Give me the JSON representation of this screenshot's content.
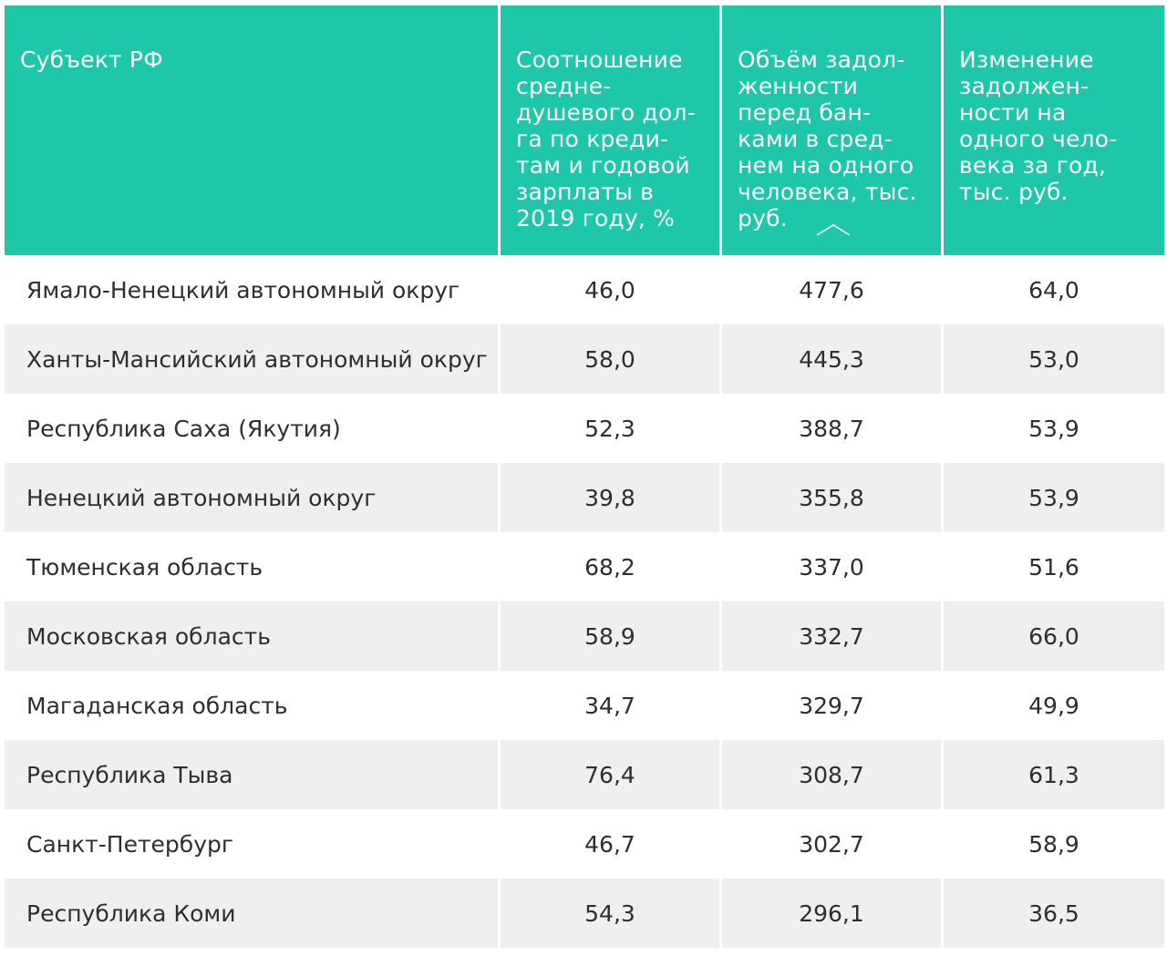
{
  "header": {
    "col1": "Субъект РФ",
    "col2": "Соотношение\nсредне-\nдушевого дол-\nга по креди-\nтам и годовой\nзарплаты в\n2019 году, %",
    "col3": "Объём задол-\nженности\nперед бан-\nками в сред-\nнем на одного\nчеловека, тыс.\nруб.",
    "col4": "Изменение\nзадолжен-\nности на\nодного чело-\nвека за год,\nтыс. руб.",
    "sort_icon": "chevron-up-icon"
  },
  "rows": [
    {
      "region": "Ямало-Ненецкий автономный округ",
      "ratio": "46,0",
      "debt": "477,6",
      "change": "64,0"
    },
    {
      "region": "Ханты-Мансийский автономный округ",
      "ratio": "58,0",
      "debt": "445,3",
      "change": "53,0"
    },
    {
      "region": "Республика Саха (Якутия)",
      "ratio": "52,3",
      "debt": "388,7",
      "change": "53,9"
    },
    {
      "region": "Ненецкий автономный округ",
      "ratio": "39,8",
      "debt": "355,8",
      "change": "53,9"
    },
    {
      "region": "Тюменская область",
      "ratio": "68,2",
      "debt": "337,0",
      "change": "51,6"
    },
    {
      "region": "Московская область",
      "ratio": "58,9",
      "debt": "332,7",
      "change": "66,0"
    },
    {
      "region": "Магаданская область",
      "ratio": "34,7",
      "debt": "329,7",
      "change": "49,9"
    },
    {
      "region": "Республика Тыва",
      "ratio": "76,4",
      "debt": "308,7",
      "change": "61,3"
    },
    {
      "region": "Санкт-Петербург",
      "ratio": "46,7",
      "debt": "302,7",
      "change": "58,9"
    },
    {
      "region": "Республика Коми",
      "ratio": "54,3",
      "debt": "296,1",
      "change": "36,5"
    }
  ],
  "colors": {
    "header_bg": "#1ec7a8",
    "row_alt_bg": "#efefef"
  }
}
